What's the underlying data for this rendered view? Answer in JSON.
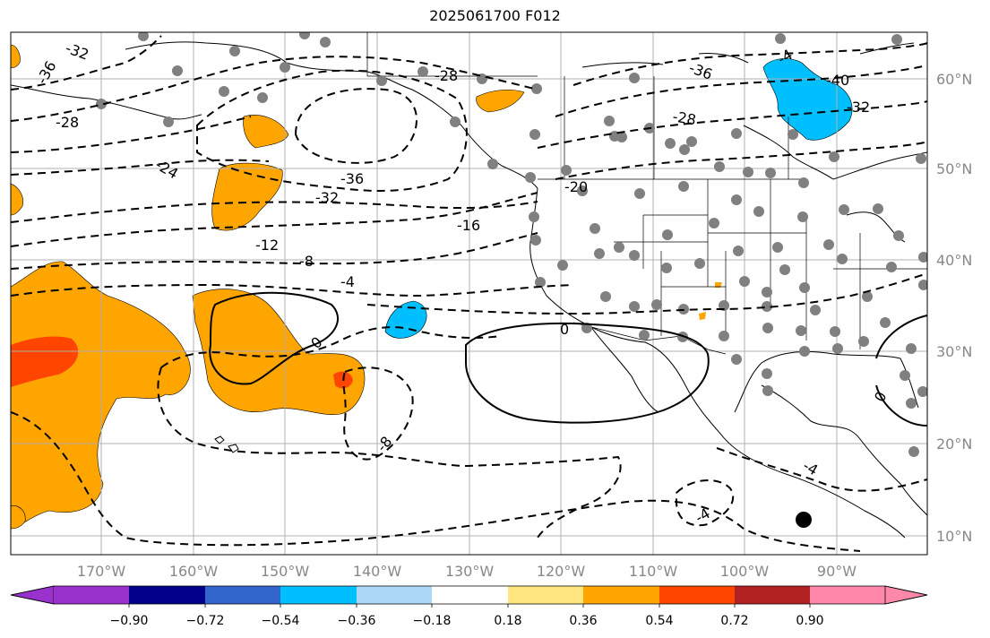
{
  "title": "2025061700 F012",
  "lon_labels": [
    "170°W",
    "160°W",
    "150°W",
    "140°W",
    "130°W",
    "120°W",
    "110°W",
    "100°W",
    "90°W"
  ],
  "lat_labels": [
    "60°N",
    "50°N",
    "40°N",
    "30°N",
    "20°N",
    "10°N"
  ],
  "contour_labels": [
    "-32",
    "-36",
    "-28",
    "-24",
    "-28",
    "-36",
    "-32",
    "-20",
    "-16",
    "-12",
    "-8",
    "-4",
    "0",
    "0",
    "-8",
    "-4",
    "-4",
    "-36",
    "-28",
    "-40",
    "-32",
    "0",
    "-4"
  ],
  "colorbar": {
    "ticks": [
      "−0.90",
      "−0.72",
      "−0.54",
      "−0.36",
      "−0.18",
      "0.18",
      "0.36",
      "0.54",
      "0.72",
      "0.90"
    ],
    "colors": [
      "#9932cc",
      "#00008b",
      "#3366cc",
      "#00bfff",
      "#add8f6",
      "#ffffff",
      "#ffe680",
      "#ffa500",
      "#ff4500",
      "#b22222",
      "#ff88aa"
    ]
  },
  "colors": {
    "positive_fill": "#ffa500",
    "strong_fill": "#ff4500",
    "negative_fill": "#00bfff",
    "station": "#808080"
  }
}
